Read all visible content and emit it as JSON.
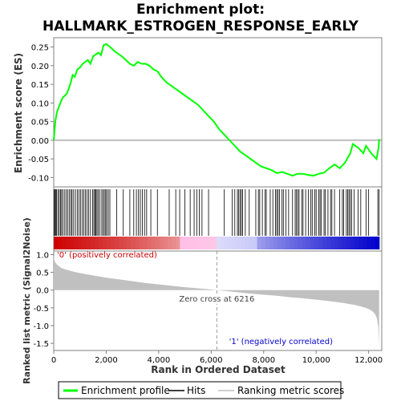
{
  "chart_data": {
    "type": "line",
    "title_line1": "Enrichment plot:",
    "title_line2": "HALLMARK_ESTROGEN_RESPONSE_EARLY",
    "es_panel": {
      "ylabel": "Enrichment score (ES)",
      "ylim": [
        -0.125,
        0.275
      ],
      "yticks": [
        0.25,
        0.2,
        0.15,
        0.1,
        0.05,
        0.0,
        -0.05,
        -0.1
      ],
      "ytick_labels": [
        "0.25",
        "0.20",
        "0.15",
        "0.10",
        "0.05",
        "0.00",
        "-0.05",
        "-0.10"
      ],
      "line_color": "#00ff00",
      "x": [
        0,
        60,
        120,
        200,
        280,
        350,
        430,
        500,
        580,
        650,
        720,
        800,
        900,
        1000,
        1100,
        1200,
        1300,
        1400,
        1500,
        1600,
        1700,
        1800,
        1900,
        2000,
        2150,
        2300,
        2450,
        2600,
        2750,
        2900,
        3050,
        3200,
        3350,
        3500,
        3650,
        3800,
        3950,
        4100,
        4300,
        4500,
        4700,
        4900,
        5100,
        5300,
        5500,
        5700,
        5900,
        6100,
        6300,
        6500,
        6700,
        6900,
        7100,
        7300,
        7500,
        7700,
        7900,
        8100,
        8300,
        8500,
        8700,
        8900,
        9100,
        9300,
        9500,
        9700,
        9900,
        10100,
        10300,
        10500,
        10700,
        10900,
        11100,
        11300,
        11400,
        11600,
        11800,
        11900,
        12100,
        12300,
        12380,
        12400
      ],
      "y": [
        0.0,
        0.05,
        0.075,
        0.09,
        0.105,
        0.115,
        0.12,
        0.125,
        0.14,
        0.155,
        0.175,
        0.17,
        0.19,
        0.195,
        0.205,
        0.21,
        0.215,
        0.205,
        0.225,
        0.23,
        0.235,
        0.228,
        0.255,
        0.258,
        0.25,
        0.24,
        0.232,
        0.225,
        0.215,
        0.205,
        0.2,
        0.21,
        0.205,
        0.205,
        0.2,
        0.19,
        0.185,
        0.17,
        0.155,
        0.145,
        0.135,
        0.125,
        0.115,
        0.105,
        0.095,
        0.08,
        0.065,
        0.05,
        0.03,
        0.015,
        0.0,
        -0.015,
        -0.03,
        -0.04,
        -0.05,
        -0.06,
        -0.07,
        -0.075,
        -0.08,
        -0.088,
        -0.085,
        -0.09,
        -0.095,
        -0.09,
        -0.09,
        -0.093,
        -0.095,
        -0.09,
        -0.087,
        -0.075,
        -0.065,
        -0.075,
        -0.06,
        -0.035,
        -0.01,
        -0.02,
        -0.035,
        -0.015,
        -0.035,
        -0.05,
        -0.02,
        0.003
      ]
    },
    "hits_panel": {
      "positions": [
        15,
        40,
        75,
        110,
        160,
        210,
        260,
        300,
        350,
        420,
        480,
        540,
        600,
        660,
        700,
        760,
        830,
        900,
        960,
        1020,
        1090,
        1150,
        1210,
        1270,
        1330,
        1400,
        1480,
        1530,
        1570,
        1610,
        1650,
        1700,
        1760,
        1830,
        1880,
        1930,
        1980,
        2020,
        2080,
        2140,
        2400,
        2650,
        2900,
        3050,
        3150,
        3230,
        3300,
        3380,
        3460,
        3540,
        3700,
        3950,
        4400,
        4650,
        4800,
        5000,
        5200,
        5350,
        5450,
        5550,
        5650,
        5900,
        6500,
        6800,
        6900,
        7000,
        7050,
        7100,
        7150,
        7200,
        7300,
        7450,
        7700,
        7800,
        7850,
        7950,
        8050,
        8100,
        8250,
        8350,
        8450,
        8500,
        8550,
        8600,
        8700,
        8750,
        8850,
        8950,
        9100,
        9200,
        9250,
        9300,
        9350,
        9450,
        9500,
        9600,
        9700,
        9800,
        9850,
        9950,
        10000,
        10100,
        10150,
        10200,
        10300,
        10350,
        10450,
        10550,
        10600,
        10700,
        10900,
        11000,
        11050,
        11150,
        11200,
        11250,
        11300,
        11350,
        11450,
        11600,
        11700,
        11900,
        12000,
        12350,
        12400
      ]
    },
    "rank_panel": {
      "ylabel": "Ranked list metric (Signal2Noise)",
      "xlabel": "Rank in Ordered Dataset",
      "xlim": [
        0,
        12500
      ],
      "xticks": [
        0,
        2000,
        4000,
        6000,
        8000,
        10000,
        12000
      ],
      "xtick_labels": [
        "0",
        "2,000",
        "4,000",
        "6,000",
        "8,000",
        "10,000",
        "12,000"
      ],
      "ylim": [
        -1.7,
        1.1
      ],
      "yticks": [
        1.0,
        0.5,
        0.0,
        -0.5,
        -1.0,
        -1.5
      ],
      "ytick_labels": [
        "1.0",
        "0.5",
        "0.0",
        "-0.5",
        "-1.0",
        "-1.5"
      ],
      "fill_color": "#c0c0c0",
      "x": [
        0,
        20,
        60,
        120,
        200,
        300,
        450,
        600,
        800,
        1000,
        1300,
        1600,
        2000,
        2500,
        3000,
        3500,
        4000,
        4500,
        5000,
        5500,
        6000,
        6216,
        6500,
        7000,
        7500,
        8000,
        8500,
        9000,
        9500,
        10000,
        10500,
        11000,
        11500,
        11800,
        12000,
        12150,
        12250,
        12320,
        12370,
        12400
      ],
      "y": [
        1.0,
        0.85,
        0.78,
        0.72,
        0.67,
        0.62,
        0.58,
        0.55,
        0.51,
        0.48,
        0.44,
        0.4,
        0.35,
        0.3,
        0.25,
        0.2,
        0.16,
        0.12,
        0.08,
        0.05,
        0.015,
        0.0,
        -0.02,
        -0.06,
        -0.1,
        -0.13,
        -0.16,
        -0.2,
        -0.23,
        -0.27,
        -0.31,
        -0.36,
        -0.42,
        -0.48,
        -0.53,
        -0.6,
        -0.68,
        -0.8,
        -1.05,
        -1.55
      ],
      "zero_cross_label": "Zero cross at 6216",
      "zero_cross_rank": 6216,
      "pos_label": "'0' (positively correlated)",
      "neg_label": "'1' (negatively correlated)",
      "pos_color": "#cc0000",
      "neg_color": "#0000cc"
    },
    "legend": {
      "placement": "bottom",
      "entries": [
        {
          "name": "Enrichment profile",
          "color": "#00ff00"
        },
        {
          "name": "Hits",
          "color": "#000000"
        },
        {
          "name": "Ranking metric scores",
          "color": "#c0c0c0"
        }
      ]
    }
  }
}
